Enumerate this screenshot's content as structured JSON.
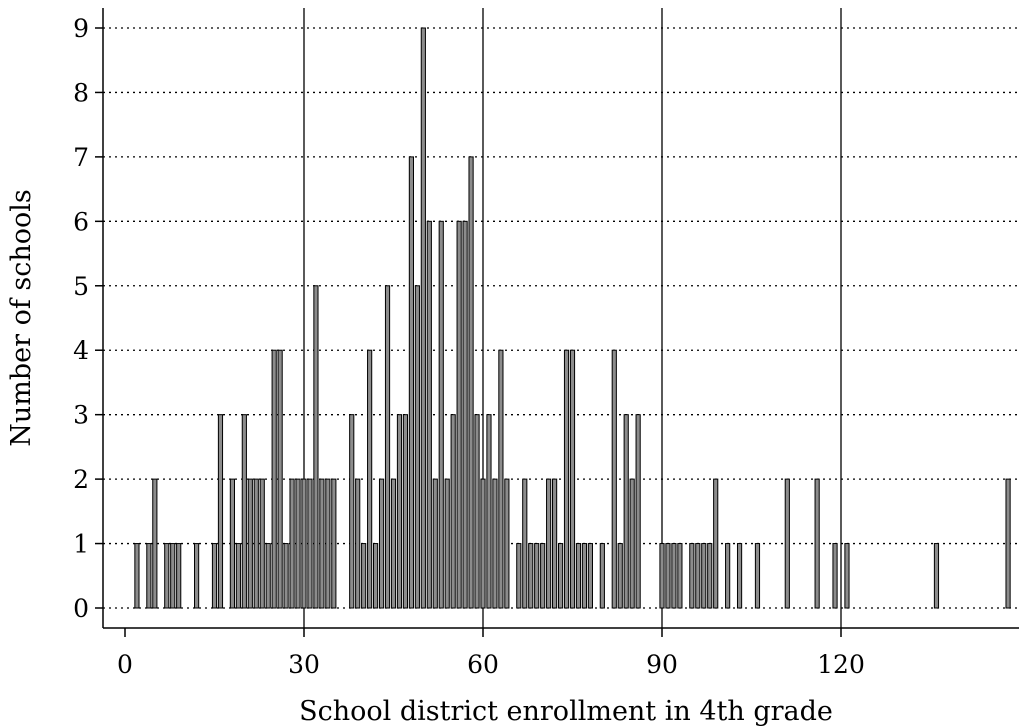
{
  "chart_data": {
    "type": "bar",
    "title": "",
    "xlabel": "School district enrollment in 4th grade",
    "ylabel": "Number of schools",
    "xlim": [
      -3,
      151
    ],
    "ylim": [
      -0.3,
      9.3
    ],
    "xticks": [
      0,
      30,
      60,
      90,
      120
    ],
    "xtick_labels": [
      "0",
      "30",
      "60",
      "90",
      "120"
    ],
    "yticks": [
      0,
      1,
      2,
      3,
      4,
      5,
      6,
      7,
      8,
      9
    ],
    "ytick_labels": [
      "0",
      "1",
      "2",
      "3",
      "4",
      "5",
      "6",
      "7",
      "8",
      "9"
    ],
    "grid": {
      "horizontal": "dotted",
      "vertical": "solid"
    },
    "bar_width": 0.7,
    "bar_color": "#8c8c8c",
    "x": [
      2,
      3,
      4,
      5,
      6,
      7,
      8,
      9,
      10,
      11,
      12,
      13,
      14,
      15,
      16,
      17,
      18,
      19,
      20,
      21,
      22,
      23,
      24,
      25,
      26,
      27,
      28,
      29,
      30,
      31,
      32,
      33,
      34,
      35,
      36,
      37,
      38,
      39,
      40,
      41,
      42,
      43,
      44,
      45,
      46,
      47,
      48,
      49,
      50,
      51,
      52,
      53,
      54,
      55,
      56,
      57,
      58,
      59,
      60,
      61,
      62,
      63,
      64,
      65,
      66,
      67,
      68,
      69,
      70,
      71,
      72,
      73,
      74,
      75,
      76,
      77,
      78,
      79,
      80,
      81,
      82,
      83,
      84,
      85,
      86,
      87,
      88,
      89,
      90,
      91,
      92,
      93,
      94,
      95,
      96,
      97,
      98,
      99,
      100,
      101,
      102,
      103,
      104,
      105,
      106,
      107,
      108,
      109,
      110,
      111,
      112,
      113,
      114,
      115,
      116,
      117,
      118,
      119,
      120,
      121,
      122,
      123,
      124,
      125,
      126,
      127,
      128,
      129,
      130,
      131,
      132,
      133,
      134,
      135,
      136,
      137,
      138,
      139,
      140,
      141,
      142,
      143,
      144,
      145,
      146,
      147,
      148,
      149
    ],
    "values": [
      1,
      0,
      1,
      2,
      0,
      1,
      1,
      1,
      0,
      0,
      1,
      0,
      0,
      1,
      3,
      0,
      2,
      1,
      3,
      2,
      2,
      2,
      1,
      4,
      4,
      1,
      2,
      2,
      2,
      2,
      5,
      2,
      2,
      2,
      0,
      0,
      3,
      2,
      1,
      4,
      1,
      2,
      5,
      2,
      3,
      3,
      7,
      5,
      9,
      6,
      2,
      6,
      2,
      3,
      6,
      6,
      7,
      3,
      2,
      3,
      2,
      4,
      2,
      0,
      1,
      2,
      1,
      1,
      1,
      2,
      2,
      1,
      4,
      4,
      1,
      1,
      1,
      0,
      1,
      0,
      4,
      1,
      3,
      2,
      3,
      0,
      0,
      0,
      1,
      1,
      1,
      1,
      0,
      1,
      1,
      1,
      1,
      2,
      0,
      1,
      0,
      1,
      0,
      0,
      1,
      0,
      0,
      0,
      0,
      2,
      0,
      0,
      0,
      0,
      2,
      0,
      0,
      1,
      0,
      1,
      0,
      0,
      0,
      0,
      0,
      0,
      0,
      0,
      0,
      0,
      0,
      0,
      0,
      0,
      1,
      0,
      0,
      0,
      0,
      0,
      0,
      0,
      0,
      0,
      0,
      0,
      2,
      0
    ]
  }
}
